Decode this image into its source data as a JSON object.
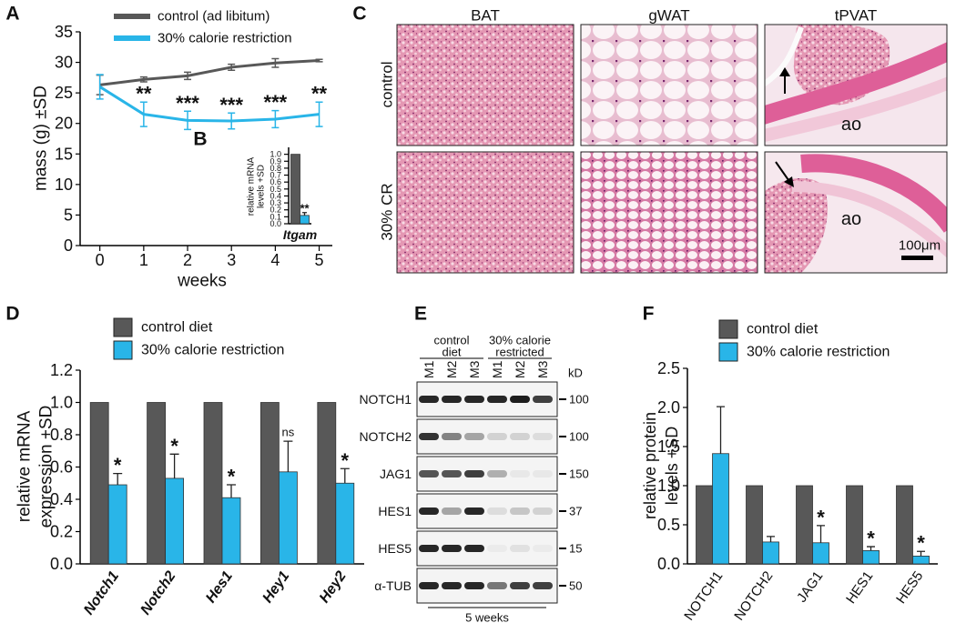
{
  "panel_labels": [
    "A",
    "B",
    "C",
    "D",
    "E",
    "F"
  ],
  "chart_data": [
    {
      "type": "line",
      "xlabel": "weeks",
      "ylabel": "mass (g) ±SD",
      "x": [
        0,
        1,
        2,
        3,
        4,
        5
      ],
      "xlim": [
        -0.45,
        5.3
      ],
      "xticks": [
        0,
        1,
        2,
        3,
        4,
        5
      ],
      "ylim": [
        0,
        35
      ],
      "yticks": [
        0,
        5,
        10,
        15,
        20,
        25,
        30,
        35
      ],
      "series": [
        {
          "name": "control (ad libitum)",
          "color": "#585858",
          "values": [
            26.3,
            27.2,
            27.8,
            29.2,
            29.9,
            30.3
          ],
          "errors": [
            1.6,
            0.4,
            0.6,
            0.5,
            0.7,
            0.2
          ]
        },
        {
          "name": "30% calorie restriction",
          "color": "#29b5e8",
          "values": [
            26.0,
            21.5,
            20.5,
            20.4,
            20.7,
            21.5
          ],
          "errors": [
            2.0,
            2.0,
            1.5,
            1.3,
            1.4,
            2.0
          ]
        }
      ],
      "annotations": [
        {
          "index": 1,
          "series": 1,
          "text": "**"
        },
        {
          "index": 2,
          "series": 1,
          "text": "***"
        },
        {
          "index": 3,
          "series": 1,
          "text": "***"
        },
        {
          "index": 4,
          "series": 1,
          "text": "***"
        },
        {
          "index": 5,
          "series": 1,
          "text": "**"
        }
      ]
    },
    {
      "type": "bar",
      "ylabel": [
        "relative mRNA",
        "levels +SD"
      ],
      "categories": [
        "Itgam"
      ],
      "ylim": [
        0,
        1.1
      ],
      "yticks": [
        {
          "value": 0,
          "label": "0.0"
        },
        {
          "value": 0.1,
          "label": "0.1"
        },
        {
          "value": 0.2,
          "label": "0.2"
        },
        {
          "value": 0.3,
          "label": "0.3"
        },
        {
          "value": 0.4,
          "label": "0.4"
        },
        {
          "value": 0.5,
          "label": "0.5"
        },
        {
          "value": 0.6,
          "label": "0.6"
        },
        {
          "value": 0.7,
          "label": "0.7"
        },
        {
          "value": 0.8,
          "label": "0.8"
        },
        {
          "value": 0.9,
          "label": "0.9"
        },
        {
          "value": 1,
          "label": "1.0"
        }
      ],
      "series": [
        {
          "color": "#585858",
          "values": [
            1.0
          ]
        },
        {
          "color": "#29b5e8",
          "values": [
            0.12
          ],
          "errors": [
            0.04
          ]
        }
      ],
      "annotations": [
        {
          "index": 0,
          "series": 1,
          "text": "**"
        }
      ]
    },
    {
      "type": "bar",
      "ylabel": [
        "relative mRNA",
        "expression +SD"
      ],
      "categories": [
        "Notch1",
        "Notch2",
        "Hes1",
        "Hey1",
        "Hey2"
      ],
      "ylim": [
        0,
        1.2
      ],
      "yticks": [
        {
          "value": 0,
          "label": "0.0"
        },
        {
          "value": 0.2,
          "label": "0.2"
        },
        {
          "value": 0.4,
          "label": "0.4"
        },
        {
          "value": 0.6,
          "label": "0.6"
        },
        {
          "value": 0.8,
          "label": "0.8"
        },
        {
          "value": 1,
          "label": "1.0"
        },
        {
          "value": 1.2,
          "label": "1.2"
        }
      ],
      "series": [
        {
          "name": "control diet",
          "color": "#585858",
          "values": [
            1.0,
            1.0,
            1.0,
            1.0,
            1.0
          ]
        },
        {
          "name": "30% calorie restriction",
          "color": "#29b5e8",
          "values": [
            0.49,
            0.53,
            0.41,
            0.57,
            0.5
          ],
          "errors": [
            0.07,
            0.15,
            0.08,
            0.19,
            0.09
          ]
        }
      ],
      "annotations": [
        {
          "index": 0,
          "series": 1,
          "text": "*"
        },
        {
          "index": 1,
          "series": 1,
          "text": "*"
        },
        {
          "index": 2,
          "series": 1,
          "text": "*"
        },
        {
          "index": 3,
          "series": 1,
          "text": "ns"
        },
        {
          "index": 4,
          "series": 1,
          "text": "*"
        }
      ]
    },
    {
      "type": "bar",
      "ylabel": [
        "relative protein",
        "levels +SD"
      ],
      "categories": [
        "NOTCH1",
        "NOTCH2",
        "JAG1",
        "HES1",
        "HES5"
      ],
      "ylim": [
        0,
        2.5
      ],
      "yticks": [
        {
          "value": 0,
          "label": "0.0"
        },
        {
          "value": 0.5,
          "label": "0.5"
        },
        {
          "value": 1,
          "label": "1.0"
        },
        {
          "value": 1.5,
          "label": "1.5"
        },
        {
          "value": 2,
          "label": "2.0"
        },
        {
          "value": 2.5,
          "label": "2.5"
        }
      ],
      "series": [
        {
          "name": "control diet",
          "color": "#585858",
          "values": [
            1.0,
            1.0,
            1.0,
            1.0,
            1.0
          ]
        },
        {
          "name": "30% calorie restriction",
          "color": "#29b5e8",
          "values": [
            1.41,
            0.28,
            0.27,
            0.17,
            0.1
          ],
          "errors": [
            0.6,
            0.07,
            0.22,
            0.05,
            0.06
          ]
        }
      ],
      "annotations": [
        {
          "index": 2,
          "series": 1,
          "text": "*"
        },
        {
          "index": 3,
          "series": 1,
          "text": "*"
        },
        {
          "index": 4,
          "series": 1,
          "text": "*"
        }
      ]
    }
  ],
  "histology": {
    "columns": [
      "BAT",
      "gWAT",
      "tPVAT"
    ],
    "rows": [
      "control",
      "30% CR"
    ],
    "annotations": [
      "ao",
      "ao"
    ],
    "scale_bar": "100μm"
  },
  "blot": {
    "groups": [
      [
        "control",
        "diet"
      ],
      [
        "30% calorie",
        "restricted"
      ]
    ],
    "lanes": [
      "M1",
      "M2",
      "M3",
      "M1",
      "M2",
      "M3"
    ],
    "unit": "kD",
    "rows": [
      {
        "label": "NOTCH1",
        "marker": 100
      },
      {
        "label": "NOTCH2",
        "marker": 100
      },
      {
        "label": "JAG1",
        "marker": 150
      },
      {
        "label": "HES1",
        "marker": 37
      },
      {
        "label": "HES5",
        "marker": 15
      },
      {
        "label": "α-TUB",
        "marker": 50
      }
    ],
    "duration": "5 weeks"
  }
}
